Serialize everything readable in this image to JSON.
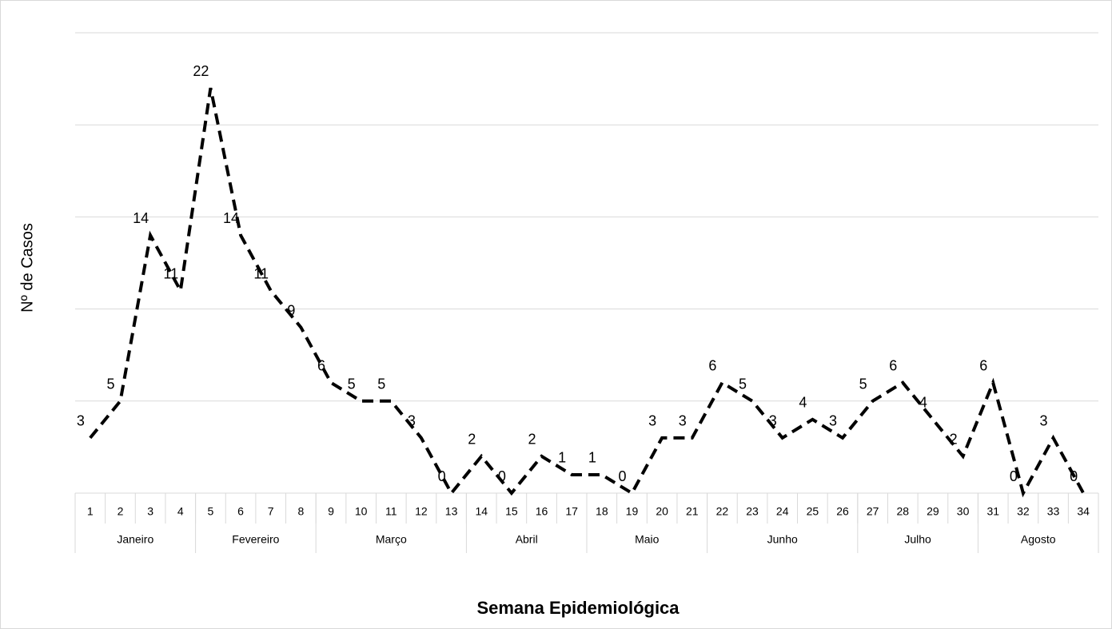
{
  "chart_data": {
    "type": "line",
    "x_title": "Semana Epidemiológica",
    "y_title": "Nº de Casos",
    "categories": [
      1,
      2,
      3,
      4,
      5,
      6,
      7,
      8,
      9,
      10,
      11,
      12,
      13,
      14,
      15,
      16,
      17,
      18,
      19,
      20,
      21,
      22,
      23,
      24,
      25,
      26,
      27,
      28,
      29,
      30,
      31,
      32,
      33,
      34
    ],
    "groups": [
      {
        "label": "Janeiro",
        "span": 4
      },
      {
        "label": "Fevereiro",
        "span": 4
      },
      {
        "label": "Março",
        "span": 5
      },
      {
        "label": "Abril",
        "span": 4
      },
      {
        "label": "Maio",
        "span": 4
      },
      {
        "label": "Junho",
        "span": 5
      },
      {
        "label": "Julho",
        "span": 4
      },
      {
        "label": "Agosto",
        "span": 4
      }
    ],
    "values": [
      3,
      5,
      14,
      11,
      22,
      14,
      11,
      9,
      6,
      5,
      5,
      3,
      0,
      2,
      0,
      2,
      1,
      1,
      0,
      3,
      3,
      6,
      5,
      3,
      4,
      3,
      5,
      6,
      4,
      2,
      6,
      0,
      3,
      0
    ],
    "color": "#000000",
    "ylim": [
      0,
      25
    ],
    "yticks": [
      0,
      5,
      10,
      15,
      20,
      25
    ],
    "grid": true
  }
}
